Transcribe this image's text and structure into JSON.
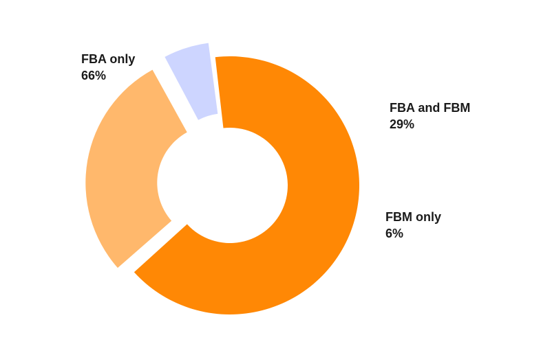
{
  "chart_data": {
    "type": "pie",
    "variant": "donut",
    "slices": [
      {
        "name": "FBA only",
        "value": 66,
        "value_label": "66%",
        "color": "#FF8805",
        "exploded": false
      },
      {
        "name": "FBA and FBM",
        "value": 29,
        "value_label": "29%",
        "color": "#FFB86C",
        "exploded": true
      },
      {
        "name": "FBM only",
        "value": 6,
        "value_label": "6%",
        "color": "#CDD5FF",
        "exploded": true
      }
    ],
    "legend": "none"
  }
}
